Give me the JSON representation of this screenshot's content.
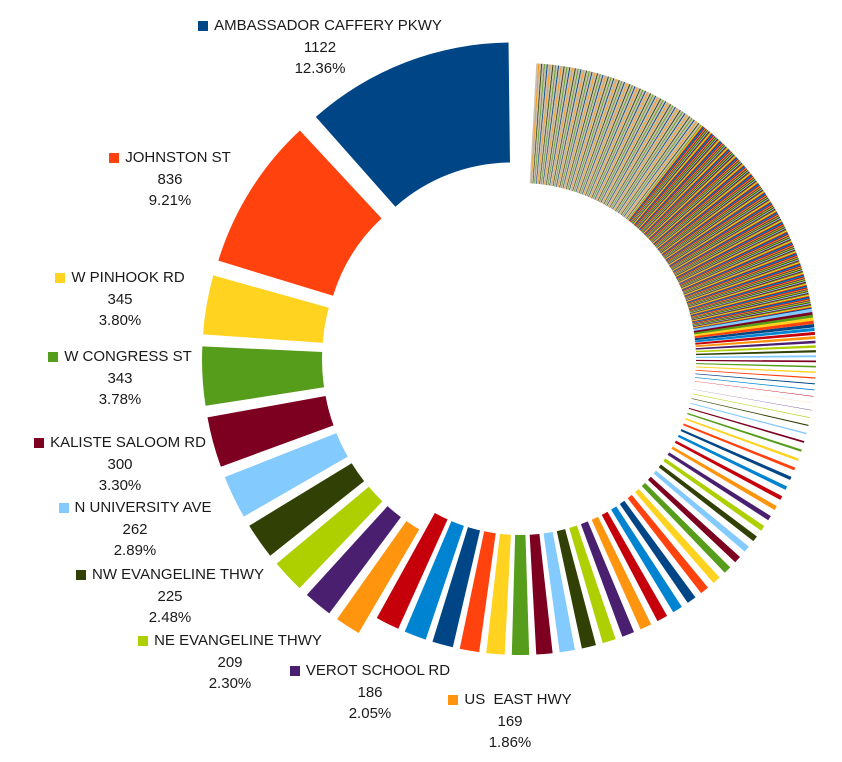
{
  "chart_data": {
    "type": "pie",
    "style": "doughnut",
    "labeled_slices": [
      {
        "name": "AMBASSADOR CAFFERY PKWY",
        "value": 1122,
        "percent": "12.36%",
        "color": "#004586"
      },
      {
        "name": "JOHNSTON ST",
        "value": 836,
        "percent": "9.21%",
        "color": "#ff420e"
      },
      {
        "name": "W PINHOOK RD",
        "value": 345,
        "percent": "3.80%",
        "color": "#ffd320"
      },
      {
        "name": "W CONGRESS ST",
        "value": 343,
        "percent": "3.78%",
        "color": "#579d1c"
      },
      {
        "name": "KALISTE SALOOM RD",
        "value": 300,
        "percent": "3.30%",
        "color": "#7e0021"
      },
      {
        "name": "N UNIVERSITY AVE",
        "value": 262,
        "percent": "2.89%",
        "color": "#83caff"
      },
      {
        "name": "NW EVANGELINE THWY",
        "value": 225,
        "percent": "2.48%",
        "color": "#314004"
      },
      {
        "name": "NE EVANGELINE THWY",
        "value": 209,
        "percent": "2.30%",
        "color": "#aecf00"
      },
      {
        "name": "VEROT SCHOOL RD",
        "value": 186,
        "percent": "2.05%",
        "color": "#4b1f6f"
      },
      {
        "name": "US  EAST HWY",
        "value": 169,
        "percent": "1.86%",
        "color": "#ff950e"
      }
    ],
    "unlabeled_slice_values": [
      160,
      152,
      145,
      138,
      132,
      126,
      121,
      116,
      111,
      106,
      101,
      97,
      93,
      89,
      85,
      82,
      79,
      76,
      73,
      70,
      67,
      65,
      62,
      60,
      58,
      56,
      54,
      52,
      50,
      48,
      46,
      44,
      42,
      40,
      38,
      36,
      34,
      32,
      31,
      30,
      29,
      28,
      27,
      26,
      25,
      24,
      23,
      22,
      21,
      20,
      19,
      18,
      17,
      16,
      15,
      14
    ],
    "unlabeled_remainder": {
      "total": 2131,
      "approx_count": 420
    },
    "palette": [
      "#004586",
      "#ff420e",
      "#ffd320",
      "#579d1c",
      "#7e0021",
      "#83caff",
      "#314004",
      "#aecf00",
      "#4b1f6f",
      "#ff950e",
      "#c5000b",
      "#0084d1"
    ],
    "remainder_tint": "#c9bfae",
    "exploded_slices": 10
  }
}
